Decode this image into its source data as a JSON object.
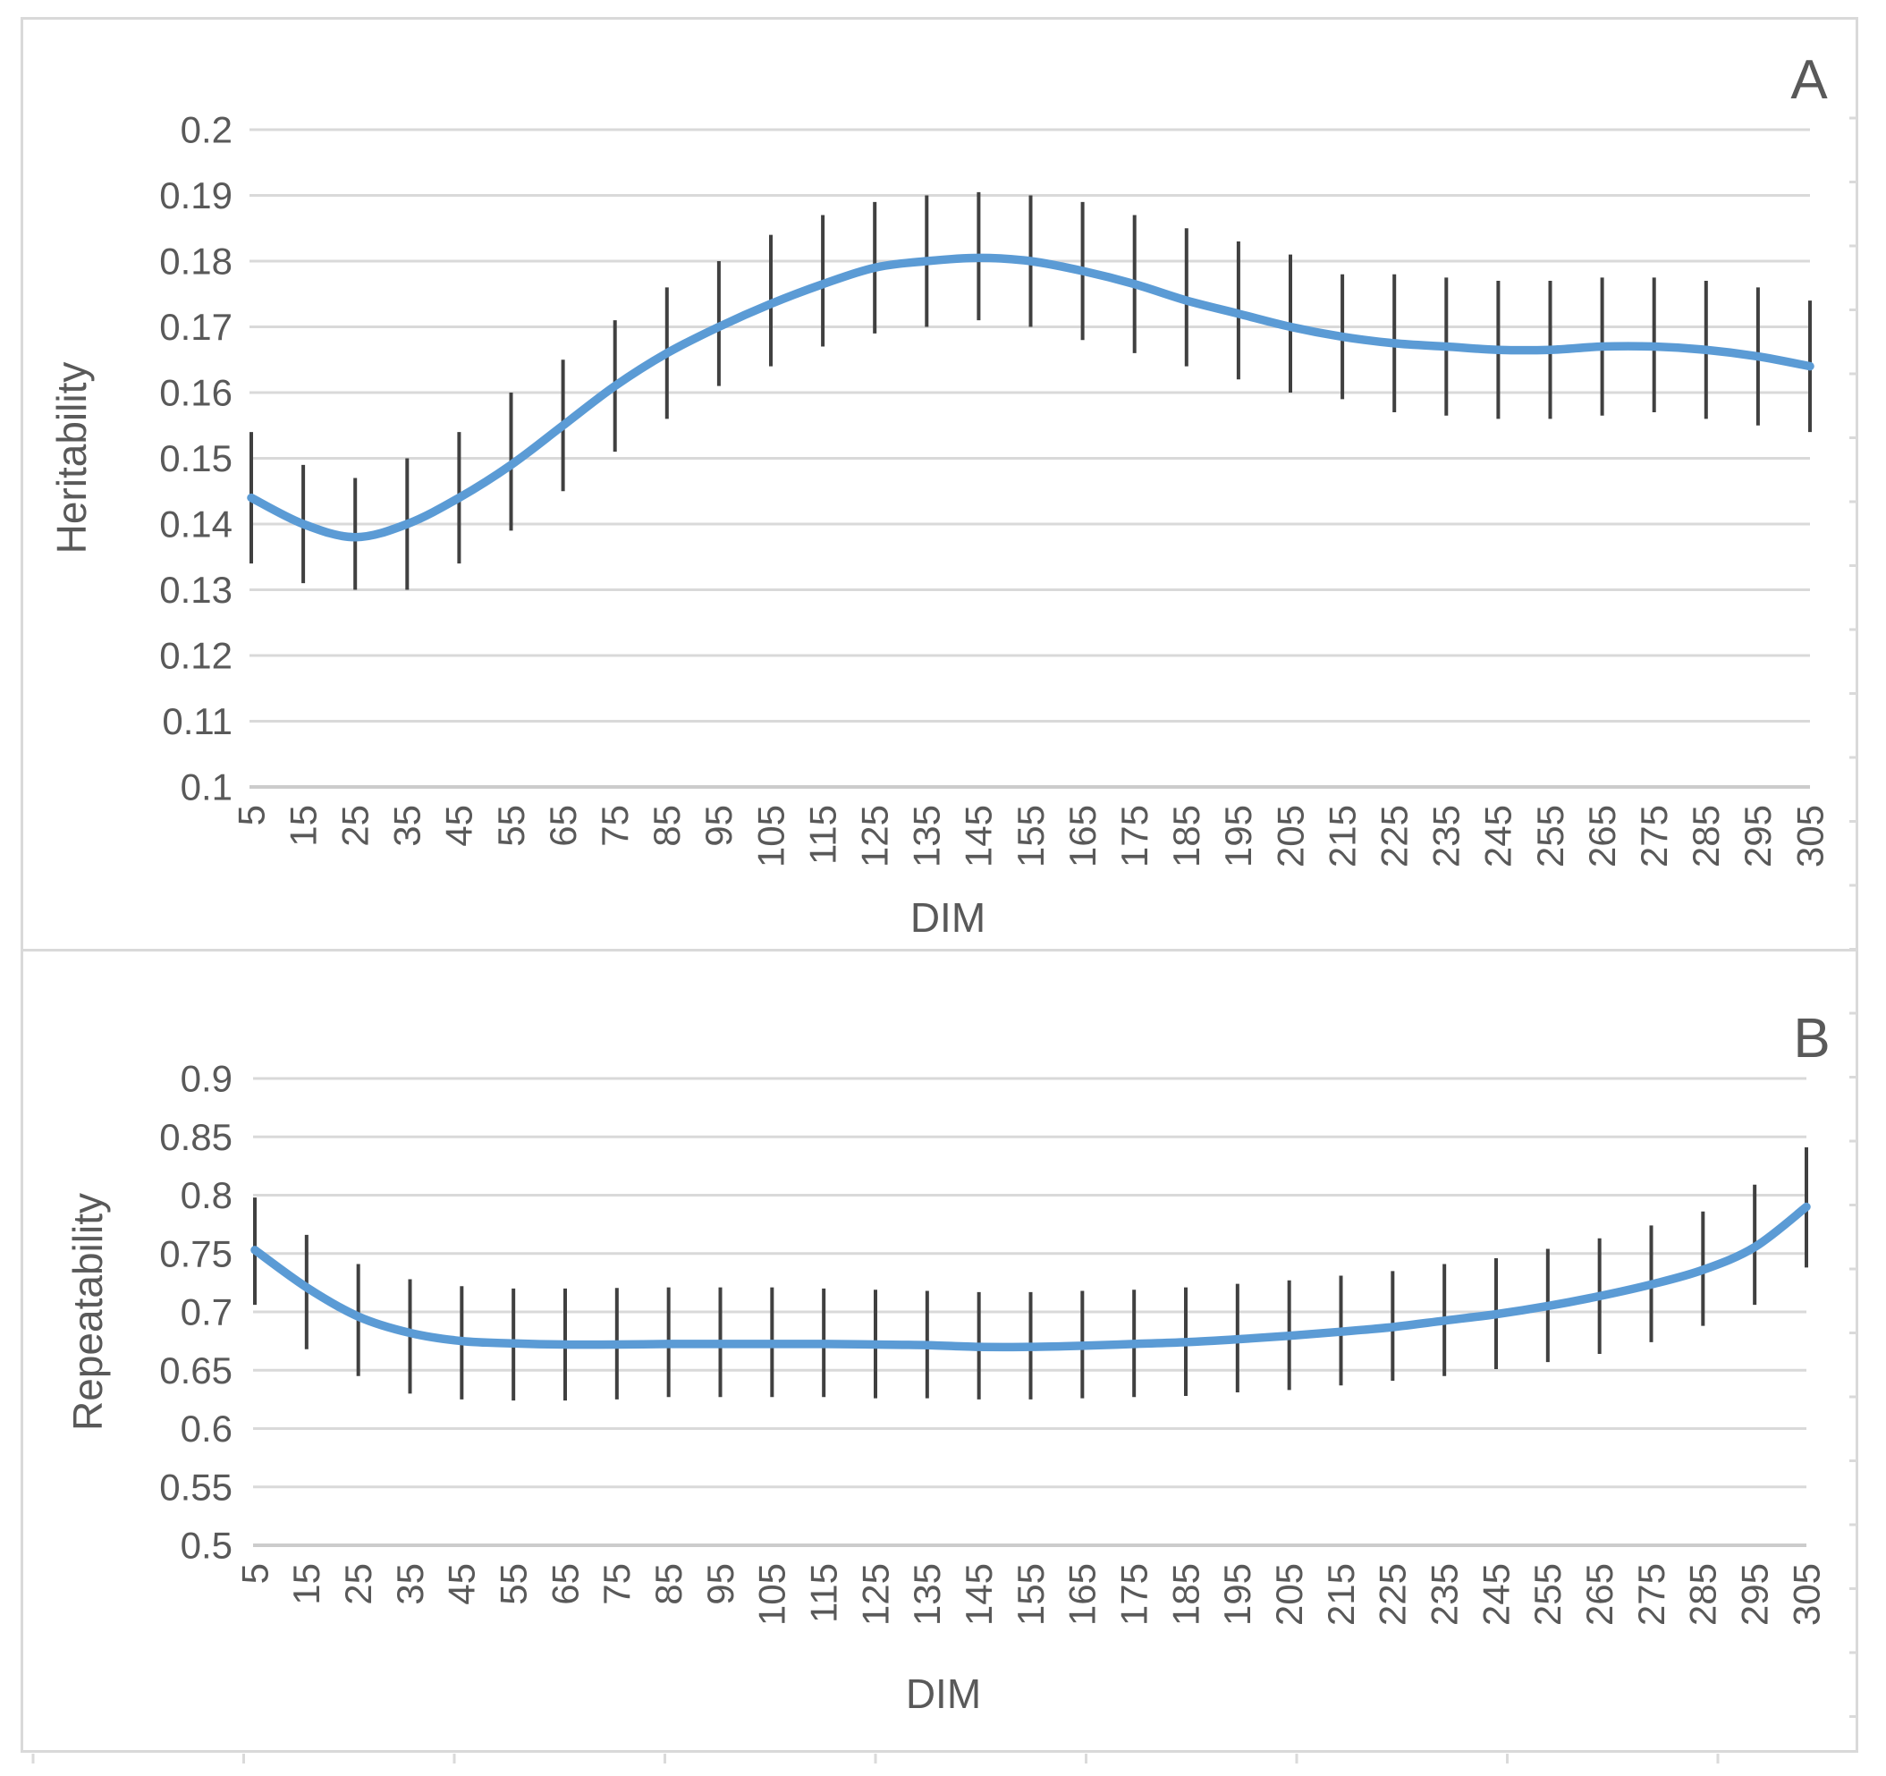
{
  "figure": {
    "background_color": "#ffffff",
    "frame_color": "#d9d9d9",
    "text_color": "#595959",
    "panels": [
      {
        "label": "A",
        "y_axis_title": "Heritability",
        "x_axis_title": "DIM"
      },
      {
        "label": "B",
        "y_axis_title": "Repeatability",
        "x_axis_title": "DIM"
      }
    ]
  },
  "chart_data": [
    {
      "id": "panel-A",
      "type": "line",
      "panel_label": "A",
      "title": "",
      "xlabel": "DIM",
      "ylabel": "Heritability",
      "x": [
        5,
        15,
        25,
        35,
        45,
        55,
        65,
        75,
        85,
        95,
        105,
        115,
        125,
        135,
        145,
        155,
        165,
        175,
        185,
        195,
        205,
        215,
        225,
        235,
        245,
        255,
        265,
        275,
        285,
        295,
        305
      ],
      "xtick_labels": [
        "5",
        "15",
        "25",
        "35",
        "45",
        "55",
        "65",
        "75",
        "85",
        "95",
        "105",
        "115",
        "125",
        "135",
        "145",
        "155",
        "165",
        "175",
        "185",
        "195",
        "205",
        "215",
        "225",
        "235",
        "245",
        "255",
        "265",
        "275",
        "285",
        "295",
        "305"
      ],
      "ylim": [
        0.1,
        0.2
      ],
      "ytick_labels": [
        "0.2",
        "0.19",
        "0.18",
        "0.17",
        "0.16",
        "0.15",
        "0.14",
        "0.13",
        "0.12",
        "0.11",
        "0.1"
      ],
      "ytick_values": [
        0.2,
        0.19,
        0.18,
        0.17,
        0.16,
        0.15,
        0.14,
        0.13,
        0.12,
        0.11,
        0.1
      ],
      "grid": true,
      "legend": "none",
      "line_color": "#5b9bd5",
      "error_bar_color": "#404040",
      "series": [
        {
          "name": "heritability",
          "values": [
            0.144,
            0.14,
            0.138,
            0.14,
            0.144,
            0.149,
            0.155,
            0.161,
            0.166,
            0.17,
            0.1735,
            0.1765,
            0.179,
            0.18,
            0.1805,
            0.18,
            0.1785,
            0.1765,
            0.174,
            0.172,
            0.17,
            0.1685,
            0.1675,
            0.167,
            0.1665,
            0.1665,
            0.167,
            0.167,
            0.1665,
            0.1655,
            0.164
          ]
        }
      ],
      "error_low": [
        0.134,
        0.131,
        0.13,
        0.13,
        0.134,
        0.139,
        0.145,
        0.151,
        0.156,
        0.161,
        0.164,
        0.167,
        0.169,
        0.17,
        0.171,
        0.17,
        0.168,
        0.166,
        0.164,
        0.162,
        0.16,
        0.159,
        0.157,
        0.1565,
        0.156,
        0.156,
        0.1565,
        0.157,
        0.156,
        0.155,
        0.154
      ],
      "error_high": [
        0.154,
        0.149,
        0.147,
        0.15,
        0.154,
        0.16,
        0.165,
        0.171,
        0.176,
        0.18,
        0.184,
        0.187,
        0.189,
        0.19,
        0.1905,
        0.19,
        0.189,
        0.187,
        0.185,
        0.183,
        0.181,
        0.178,
        0.178,
        0.1775,
        0.177,
        0.177,
        0.1775,
        0.1775,
        0.177,
        0.176,
        0.174
      ]
    },
    {
      "id": "panel-B",
      "type": "line",
      "panel_label": "B",
      "title": "",
      "xlabel": "DIM",
      "ylabel": "Repeatability",
      "x": [
        5,
        15,
        25,
        35,
        45,
        55,
        65,
        75,
        85,
        95,
        105,
        115,
        125,
        135,
        145,
        155,
        165,
        175,
        185,
        195,
        205,
        215,
        225,
        235,
        245,
        255,
        265,
        275,
        285,
        295,
        305
      ],
      "xtick_labels": [
        "5",
        "15",
        "25",
        "35",
        "45",
        "55",
        "65",
        "75",
        "85",
        "95",
        "105",
        "115",
        "125",
        "135",
        "145",
        "155",
        "165",
        "175",
        "185",
        "195",
        "205",
        "215",
        "225",
        "235",
        "245",
        "255",
        "265",
        "275",
        "285",
        "295",
        "305"
      ],
      "ylim": [
        0.5,
        0.9
      ],
      "ytick_labels": [
        "0.9",
        "0.85",
        "0.8",
        "0.75",
        "0.7",
        "0.65",
        "0.6",
        "0.55",
        "0.5"
      ],
      "ytick_values": [
        0.9,
        0.85,
        0.8,
        0.75,
        0.7,
        0.65,
        0.6,
        0.55,
        0.5
      ],
      "grid": true,
      "legend": "none",
      "line_color": "#5b9bd5",
      "error_bar_color": "#404040",
      "series": [
        {
          "name": "repeatability",
          "values": [
            0.753,
            0.721,
            0.696,
            0.682,
            0.675,
            0.673,
            0.672,
            0.672,
            0.6725,
            0.6725,
            0.6725,
            0.6725,
            0.672,
            0.6715,
            0.67,
            0.67,
            0.671,
            0.6725,
            0.674,
            0.6765,
            0.6795,
            0.683,
            0.687,
            0.6925,
            0.698,
            0.705,
            0.7135,
            0.7235,
            0.736,
            0.7555,
            0.79
          ]
        }
      ],
      "error_low": [
        0.706,
        0.668,
        0.645,
        0.63,
        0.625,
        0.624,
        0.624,
        0.625,
        0.627,
        0.627,
        0.627,
        0.627,
        0.626,
        0.626,
        0.625,
        0.625,
        0.626,
        0.627,
        0.628,
        0.631,
        0.633,
        0.637,
        0.641,
        0.645,
        0.651,
        0.657,
        0.664,
        0.674,
        0.688,
        0.706,
        0.738
      ],
      "error_high": [
        0.798,
        0.766,
        0.741,
        0.728,
        0.722,
        0.72,
        0.72,
        0.7205,
        0.721,
        0.721,
        0.721,
        0.72,
        0.719,
        0.718,
        0.717,
        0.717,
        0.718,
        0.719,
        0.721,
        0.724,
        0.727,
        0.731,
        0.735,
        0.741,
        0.746,
        0.754,
        0.763,
        0.774,
        0.786,
        0.809,
        0.841
      ]
    }
  ]
}
